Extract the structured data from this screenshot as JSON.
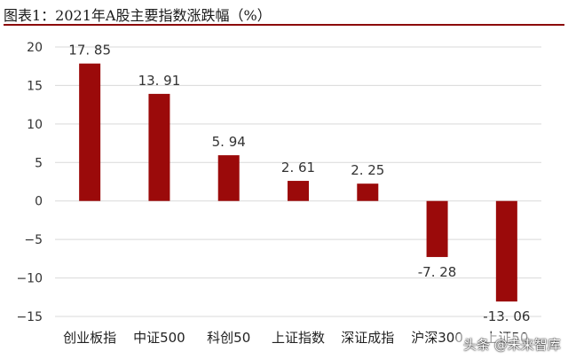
{
  "figure_title": "图表1：2021年A股主要指数涨跌幅（%）",
  "watermark": "头条 @未来智库",
  "colors": {
    "bar": "#9b0a0a",
    "grid": "#d9d9d9",
    "title_rule": "#8c0a0a"
  },
  "chart_data": {
    "type": "bar",
    "title": "",
    "xlabel": "",
    "ylabel": "",
    "categories": [
      "创业板指",
      "中证500",
      "科创50",
      "上证指数",
      "深证成指",
      "沪深300",
      "上证50"
    ],
    "values": [
      17.85,
      13.91,
      5.94,
      2.61,
      2.25,
      -7.28,
      -13.06
    ],
    "value_labels": [
      "17. 85",
      "13. 91",
      "5. 94",
      "2. 61",
      "2. 25",
      "-7. 28",
      "-13. 06"
    ],
    "ylim": [
      -15,
      20
    ],
    "yticks": [
      20,
      15,
      10,
      5,
      0,
      -5,
      -10,
      -15
    ],
    "ytick_labels": [
      "20",
      "15",
      "10",
      "5",
      "0",
      "−5",
      "−10",
      "−15"
    ],
    "grid": true,
    "legend": "none"
  }
}
